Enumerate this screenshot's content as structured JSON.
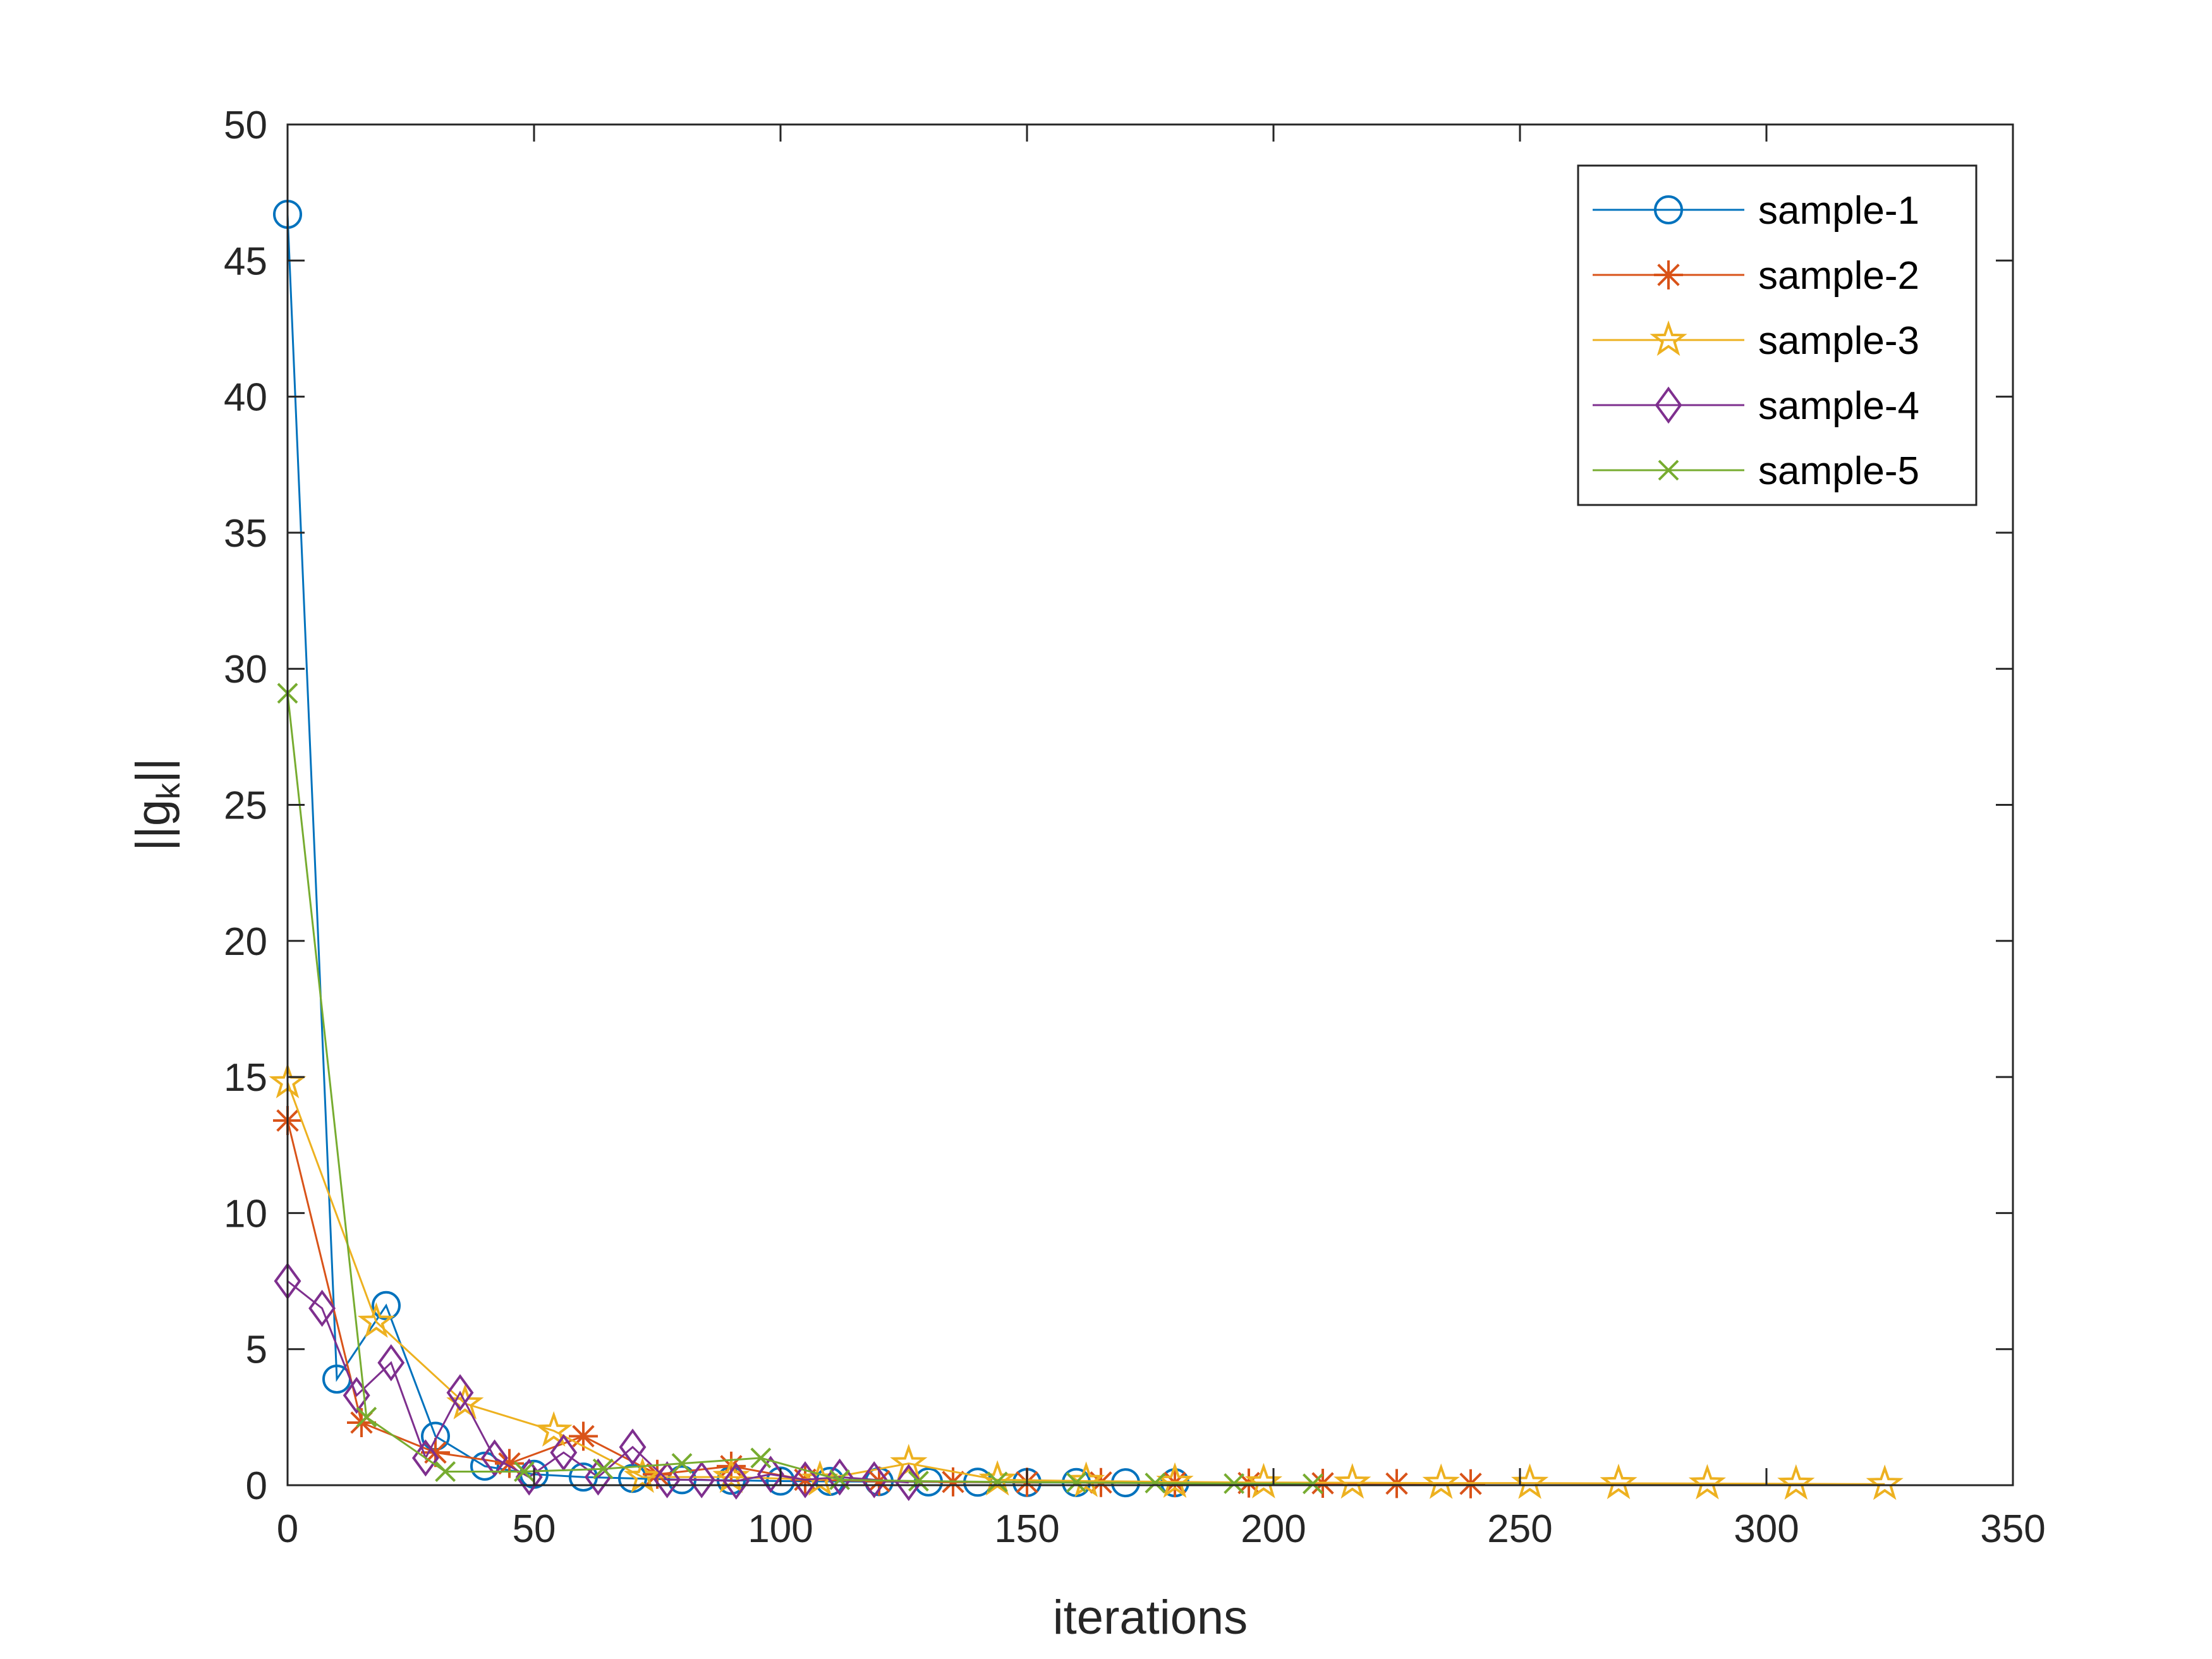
{
  "chart_data": {
    "type": "line",
    "xlabel": "iterations",
    "ylabel": "||g",
    "ylabel_sub": "k",
    "ylabel_tail": "||",
    "xlim": [
      0,
      350
    ],
    "ylim": [
      0,
      50
    ],
    "xticks": [
      0,
      50,
      100,
      150,
      200,
      250,
      300,
      350
    ],
    "yticks": [
      0,
      5,
      10,
      15,
      20,
      25,
      30,
      35,
      40,
      45,
      50
    ],
    "grid": false,
    "legend_position": "top-right",
    "series": [
      {
        "name": "sample-1",
        "color": "#0072BD",
        "marker": "circle",
        "x": [
          0,
          10,
          20,
          30,
          40,
          50,
          60,
          70,
          80,
          90,
          100,
          110,
          120,
          130,
          140,
          150,
          160,
          170,
          180
        ],
        "y": [
          46.7,
          3.9,
          6.6,
          1.8,
          0.7,
          0.4,
          0.3,
          0.25,
          0.2,
          0.18,
          0.15,
          0.14,
          0.13,
          0.12,
          0.11,
          0.1,
          0.1,
          0.09,
          0.09
        ]
      },
      {
        "name": "sample-2",
        "color": "#D95319",
        "marker": "asterisk",
        "x": [
          0,
          15,
          30,
          45,
          60,
          75,
          90,
          105,
          120,
          135,
          150,
          165,
          180,
          195,
          210,
          225,
          240
        ],
        "y": [
          13.4,
          2.3,
          1.2,
          0.8,
          1.8,
          0.4,
          0.7,
          0.2,
          0.15,
          0.12,
          0.11,
          0.1,
          0.09,
          0.08,
          0.07,
          0.06,
          0.05
        ]
      },
      {
        "name": "sample-3",
        "color": "#EDB120",
        "marker": "pentagram",
        "x": [
          0,
          18,
          36,
          54,
          72,
          90,
          108,
          126,
          144,
          162,
          180,
          198,
          216,
          234,
          252,
          270,
          288,
          306,
          324
        ],
        "y": [
          14.8,
          6.0,
          3.0,
          2.0,
          0.3,
          0.3,
          0.2,
          0.8,
          0.2,
          0.15,
          0.12,
          0.1,
          0.09,
          0.08,
          0.08,
          0.07,
          0.06,
          0.05,
          0.04
        ]
      },
      {
        "name": "sample-4",
        "color": "#7E2F8E",
        "marker": "diamond",
        "x": [
          0,
          7,
          14,
          21,
          28,
          35,
          42,
          49,
          56,
          63,
          70,
          77,
          84,
          91,
          98,
          105,
          112,
          119,
          126
        ],
        "y": [
          7.5,
          6.5,
          3.3,
          4.5,
          1.0,
          3.4,
          1.0,
          0.3,
          1.2,
          0.3,
          1.4,
          0.2,
          0.2,
          0.15,
          0.4,
          0.2,
          0.3,
          0.2,
          0.1
        ]
      },
      {
        "name": "sample-5",
        "color": "#77AC30",
        "marker": "x",
        "x": [
          0,
          16,
          32,
          48,
          64,
          80,
          96,
          112,
          128,
          144,
          160,
          176,
          192,
          208
        ],
        "y": [
          29.1,
          2.5,
          0.5,
          0.5,
          0.6,
          0.8,
          1.0,
          0.2,
          0.15,
          0.12,
          0.1,
          0.08,
          0.06,
          0.05
        ]
      }
    ]
  }
}
